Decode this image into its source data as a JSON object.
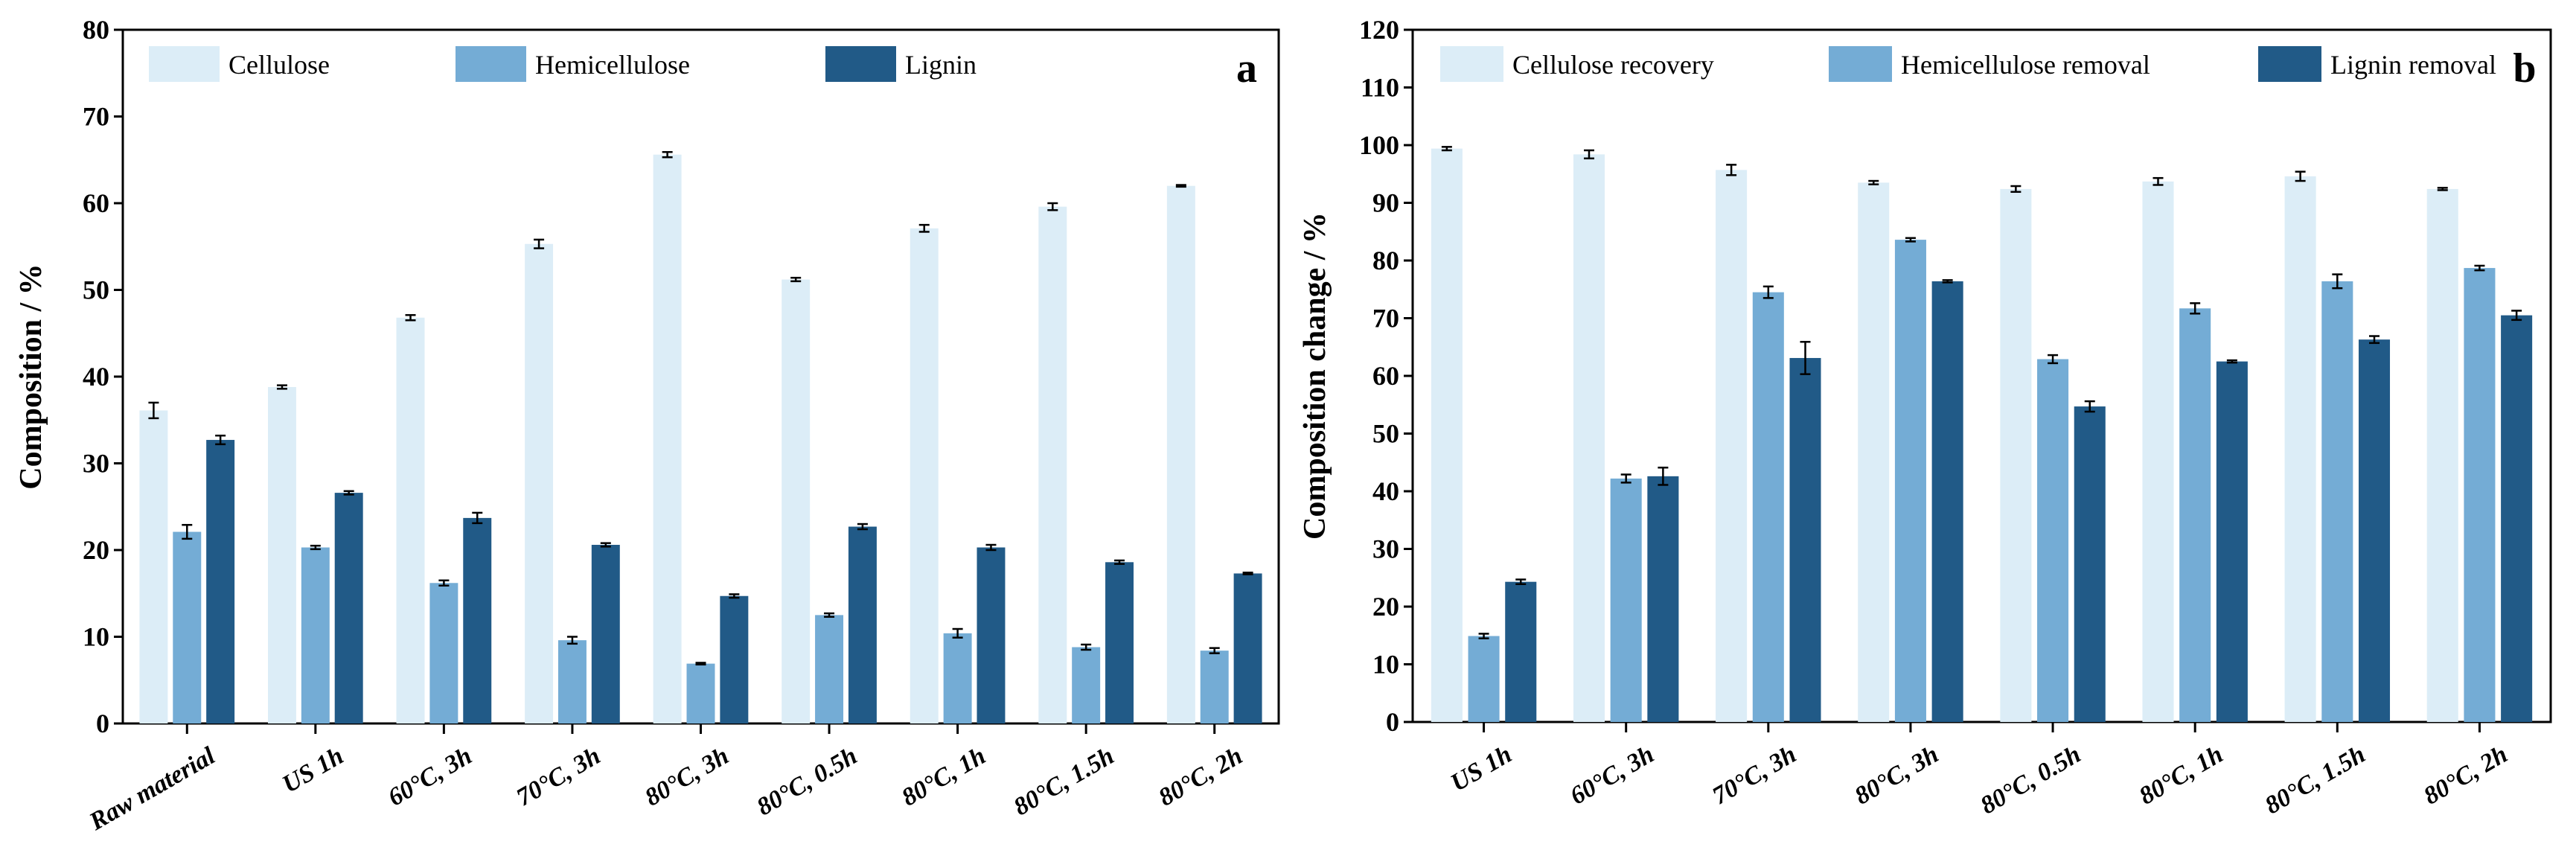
{
  "colors": {
    "c1": "#DCEDF7",
    "c2": "#74ACD5",
    "c3": "#215A87"
  },
  "chart_data": [
    {
      "type": "bar",
      "panel_label": "a",
      "ylabel": "Composition / %",
      "ylim": [
        0,
        80
      ],
      "yticks": [
        0,
        10,
        20,
        30,
        40,
        50,
        60,
        70,
        80
      ],
      "legend_position": "top-left",
      "categories": [
        "Raw material",
        "US 1h",
        "60°C,  3h",
        "70°C,  3h",
        "80°C,  3h",
        "80°C,  0.5h",
        "80°C,  1h",
        "80°C,  1.5h",
        "80°C,  2h"
      ],
      "series": [
        {
          "name": "Cellulose",
          "values": [
            36.1,
            38.8,
            46.8,
            55.3,
            65.6,
            51.2,
            57.1,
            59.6,
            62.0
          ],
          "errors": [
            0.9,
            0.2,
            0.3,
            0.5,
            0.3,
            0.2,
            0.4,
            0.4,
            0.1
          ]
        },
        {
          "name": "Hemicellulose",
          "values": [
            22.1,
            20.3,
            16.2,
            9.6,
            6.9,
            12.5,
            10.4,
            8.8,
            8.4
          ],
          "errors": [
            0.8,
            0.2,
            0.3,
            0.4,
            0.1,
            0.2,
            0.5,
            0.3,
            0.3
          ]
        },
        {
          "name": "Lignin",
          "values": [
            32.7,
            26.6,
            23.7,
            20.6,
            14.7,
            22.7,
            20.3,
            18.6,
            17.3
          ],
          "errors": [
            0.5,
            0.2,
            0.6,
            0.2,
            0.2,
            0.3,
            0.3,
            0.2,
            0.1
          ]
        }
      ]
    },
    {
      "type": "bar",
      "panel_label": "b",
      "ylabel": "Composition change / %",
      "ylim": [
        0,
        120
      ],
      "yticks": [
        0,
        10,
        20,
        30,
        40,
        50,
        60,
        70,
        80,
        90,
        100,
        110,
        120
      ],
      "legend_position": "top-left",
      "categories": [
        "US 1h",
        "60°C,  3h",
        "70°C,  3h",
        "80°C,  3h",
        "80°C,  0.5h",
        "80°C,  1h",
        "80°C,  1.5h",
        "80°C,  2h"
      ],
      "series": [
        {
          "name": "Cellulose recovery",
          "values": [
            99.4,
            98.4,
            95.7,
            93.5,
            92.4,
            93.7,
            94.6,
            92.4
          ],
          "errors": [
            0.3,
            0.7,
            0.9,
            0.3,
            0.5,
            0.6,
            0.8,
            0.2
          ]
        },
        {
          "name": "Hemicellulose removal",
          "values": [
            14.9,
            42.2,
            74.5,
            83.6,
            62.9,
            71.7,
            76.4,
            78.7
          ],
          "errors": [
            0.4,
            0.7,
            1.0,
            0.3,
            0.7,
            0.9,
            1.2,
            0.4
          ]
        },
        {
          "name": "Lignin removal",
          "values": [
            24.3,
            42.6,
            63.1,
            76.4,
            54.7,
            62.5,
            66.3,
            70.5
          ],
          "errors": [
            0.4,
            1.5,
            2.8,
            0.2,
            0.9,
            0.2,
            0.6,
            0.8
          ]
        }
      ]
    }
  ]
}
